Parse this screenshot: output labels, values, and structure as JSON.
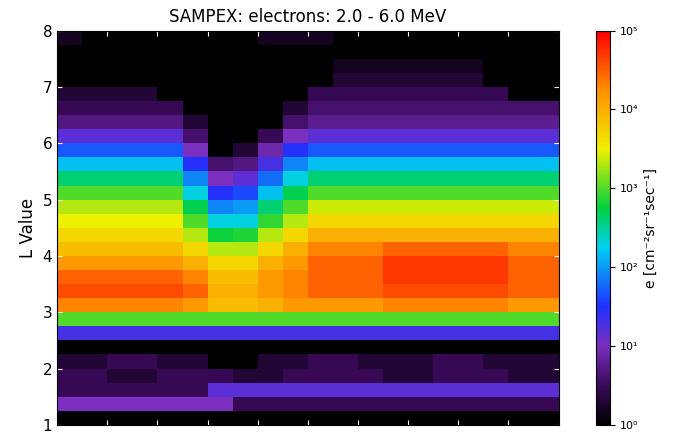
{
  "chart_data": {
    "type": "heatmap",
    "title": "SAMPEX: electrons: 2.0 - 6.0 MeV",
    "y_label": "L Value",
    "ylim": [
      1,
      8
    ],
    "yticks": [
      1,
      2,
      3,
      4,
      5,
      6,
      7,
      8
    ],
    "xlim": [
      0,
      20
    ],
    "xticks": [
      0,
      2,
      4,
      6,
      8,
      10,
      12,
      14,
      16,
      18,
      20
    ],
    "tick_labels": "y",
    "x_edges": [
      0,
      1,
      2,
      3,
      4,
      5,
      6,
      7,
      8,
      9,
      10,
      11,
      12,
      13,
      14,
      15,
      16,
      17,
      18,
      19,
      20
    ],
    "y_edges": [
      1.0,
      1.25,
      1.5,
      1.75,
      2.0,
      2.25,
      2.5,
      2.75,
      3.0,
      3.25,
      3.5,
      3.75,
      4.0,
      4.25,
      4.5,
      4.75,
      5.0,
      5.25,
      5.5,
      5.75,
      6.0,
      6.25,
      6.5,
      6.75,
      7.0,
      7.25,
      7.5,
      7.75,
      8.0
    ],
    "cells": [
      [
        1,
        1,
        1,
        1,
        1,
        1,
        1,
        1,
        1,
        1,
        1,
        1,
        1,
        1,
        1,
        1,
        1,
        1,
        1,
        1
      ],
      [
        10,
        10,
        10,
        10,
        10,
        10,
        10,
        3,
        3,
        3,
        3,
        3,
        3,
        3,
        3,
        3,
        3,
        3,
        3,
        3
      ],
      [
        3,
        3,
        3,
        3,
        3,
        3,
        15,
        15,
        15,
        15,
        15,
        15,
        15,
        15,
        15,
        15,
        15,
        15,
        15,
        15
      ],
      [
        3,
        3,
        2,
        2,
        3,
        3,
        3,
        2,
        2,
        3,
        3,
        3,
        3,
        2,
        2,
        3,
        3,
        3,
        2,
        2
      ],
      [
        2,
        2,
        3,
        3,
        2,
        2,
        1,
        1,
        2,
        2,
        3,
        3,
        2,
        2,
        2,
        3,
        3,
        2,
        2,
        2
      ],
      [
        1,
        1,
        1,
        1,
        1,
        1,
        1,
        1,
        1,
        1,
        1,
        1,
        1,
        1,
        1,
        1,
        1,
        1,
        1,
        1
      ],
      [
        20,
        20,
        20,
        20,
        20,
        20,
        20,
        20,
        20,
        20,
        20,
        20,
        20,
        20,
        20,
        20,
        20,
        20,
        20,
        20
      ],
      [
        1000,
        1000,
        1000,
        1000,
        1000,
        1000,
        1000,
        1000,
        1000,
        1000,
        1000,
        1000,
        1000,
        1000,
        1000,
        1000,
        1000,
        1000,
        1000,
        1000
      ],
      [
        20000.0,
        20000.0,
        20000.0,
        20000.0,
        20000.0,
        15000.0,
        8000.0,
        8000.0,
        10000.0,
        15000.0,
        15000.0,
        15000.0,
        15000.0,
        20000.0,
        20000.0,
        20000.0,
        20000.0,
        20000.0,
        15000.0,
        15000.0
      ],
      [
        40000.0,
        40000.0,
        40000.0,
        40000.0,
        40000.0,
        30000.0,
        10000.0,
        10000.0,
        15000.0,
        20000.0,
        30000.0,
        30000.0,
        30000.0,
        40000.0,
        40000.0,
        40000.0,
        40000.0,
        40000.0,
        30000.0,
        30000.0
      ],
      [
        30000.0,
        30000.0,
        30000.0,
        30000.0,
        30000.0,
        20000.0,
        8000.0,
        8000.0,
        15000.0,
        20000.0,
        30000.0,
        30000.0,
        30000.0,
        50000.0,
        50000.0,
        50000.0,
        50000.0,
        50000.0,
        30000.0,
        30000.0
      ],
      [
        15000.0,
        15000.0,
        15000.0,
        15000.0,
        15000.0,
        10000.0,
        5000.0,
        5000.0,
        10000.0,
        15000.0,
        30000.0,
        30000.0,
        30000.0,
        50000.0,
        50000.0,
        50000.0,
        50000.0,
        50000.0,
        30000.0,
        30000.0
      ],
      [
        8000.0,
        8000.0,
        8000.0,
        8000.0,
        8000.0,
        5000.0,
        2000.0,
        2000.0,
        5000.0,
        10000.0,
        20000.0,
        20000.0,
        20000.0,
        30000.0,
        30000.0,
        30000.0,
        30000.0,
        30000.0,
        20000.0,
        20000.0
      ],
      [
        5000.0,
        5000.0,
        5000.0,
        5000.0,
        5000.0,
        2000.0,
        600.0,
        700.0,
        2000.0,
        5000.0,
        10000.0,
        10000.0,
        10000.0,
        10000.0,
        10000.0,
        10000.0,
        10000.0,
        10000.0,
        10000.0,
        10000.0
      ],
      [
        3000.0,
        3000.0,
        3000.0,
        3000.0,
        3000.0,
        1000.0,
        200.0,
        200.0,
        800.0,
        2000.0,
        5000.0,
        5000.0,
        5000.0,
        5000.0,
        5000.0,
        5000.0,
        5000.0,
        5000.0,
        5000.0,
        5000.0
      ],
      [
        2000.0,
        2000.0,
        2000.0,
        2000.0,
        2000.0,
        500.0,
        80,
        100.0,
        400.0,
        1000.0,
        2500.0,
        2500.0,
        2500.0,
        2500.0,
        2500.0,
        2500.0,
        2500.0,
        2500.0,
        2500.0,
        2500.0
      ],
      [
        1000.0,
        1000.0,
        1000.0,
        1000.0,
        1000.0,
        200.0,
        30,
        40,
        150.0,
        500.0,
        1000.0,
        1000.0,
        1000.0,
        1000.0,
        1000.0,
        1000.0,
        1000.0,
        1000.0,
        1000.0,
        1000.0
      ],
      [
        400.0,
        400.0,
        400.0,
        400.0,
        400.0,
        80,
        10,
        15,
        60,
        200.0,
        400.0,
        400.0,
        400.0,
        400.0,
        400.0,
        400.0,
        400.0,
        400.0,
        400.0,
        400.0
      ],
      [
        150.0,
        150.0,
        150.0,
        150.0,
        150.0,
        30,
        4,
        5,
        20,
        80,
        150.0,
        150.0,
        150.0,
        150.0,
        150.0,
        150.0,
        150.0,
        150.0,
        150.0,
        150.0
      ],
      [
        50,
        50,
        50,
        50,
        50,
        10,
        1,
        2,
        8,
        30,
        50,
        50,
        50,
        50,
        50,
        50,
        50,
        50,
        50,
        50
      ],
      [
        15,
        15,
        15,
        15,
        15,
        4,
        1,
        1,
        3,
        10,
        15,
        15,
        15,
        15,
        15,
        15,
        15,
        15,
        15,
        15
      ],
      [
        5,
        5,
        5,
        5,
        5,
        2,
        1,
        1,
        1,
        4,
        6,
        6,
        6,
        6,
        6,
        6,
        6,
        6,
        6,
        6
      ],
      [
        3,
        3,
        3,
        3,
        3,
        1,
        1,
        1,
        1,
        2,
        4,
        4,
        4,
        4,
        4,
        4,
        4,
        4,
        4,
        4
      ],
      [
        2,
        2,
        2,
        2,
        1,
        1,
        1,
        1,
        1,
        1,
        3,
        3,
        3,
        3,
        3,
        3,
        3,
        3,
        1,
        1
      ],
      [
        1,
        1,
        1,
        1,
        1,
        1,
        1,
        1,
        1,
        1,
        1,
        2,
        2,
        2,
        2,
        2,
        2,
        1,
        1,
        1
      ],
      [
        1,
        1,
        1,
        1,
        1,
        1,
        1,
        1,
        1,
        1,
        1,
        1.5,
        1.5,
        1.5,
        1.5,
        1.5,
        1.5,
        1,
        1,
        1
      ],
      [
        1,
        1,
        1,
        1,
        1,
        1,
        1,
        1,
        1,
        1,
        1,
        1,
        1,
        1,
        1,
        1,
        1,
        1,
        1,
        1
      ],
      [
        1.5,
        1,
        1,
        1,
        1,
        1,
        1,
        1,
        1.5,
        1.5,
        1.5,
        1,
        1,
        1,
        1,
        1,
        1,
        1,
        1,
        1
      ]
    ],
    "log": true,
    "colorbar": {
      "label": "e [cm⁻²sr⁻¹sec⁻¹]",
      "lim": [
        1,
        100000
      ],
      "ticks": [
        {
          "value": 1,
          "label": "10⁰"
        },
        {
          "value": 10,
          "label": "10¹"
        },
        {
          "value": 100,
          "label": "10²"
        },
        {
          "value": 1000,
          "label": "10³"
        },
        {
          "value": 10000,
          "label": "10⁴"
        },
        {
          "value": 100000,
          "label": "10⁵"
        }
      ]
    }
  }
}
